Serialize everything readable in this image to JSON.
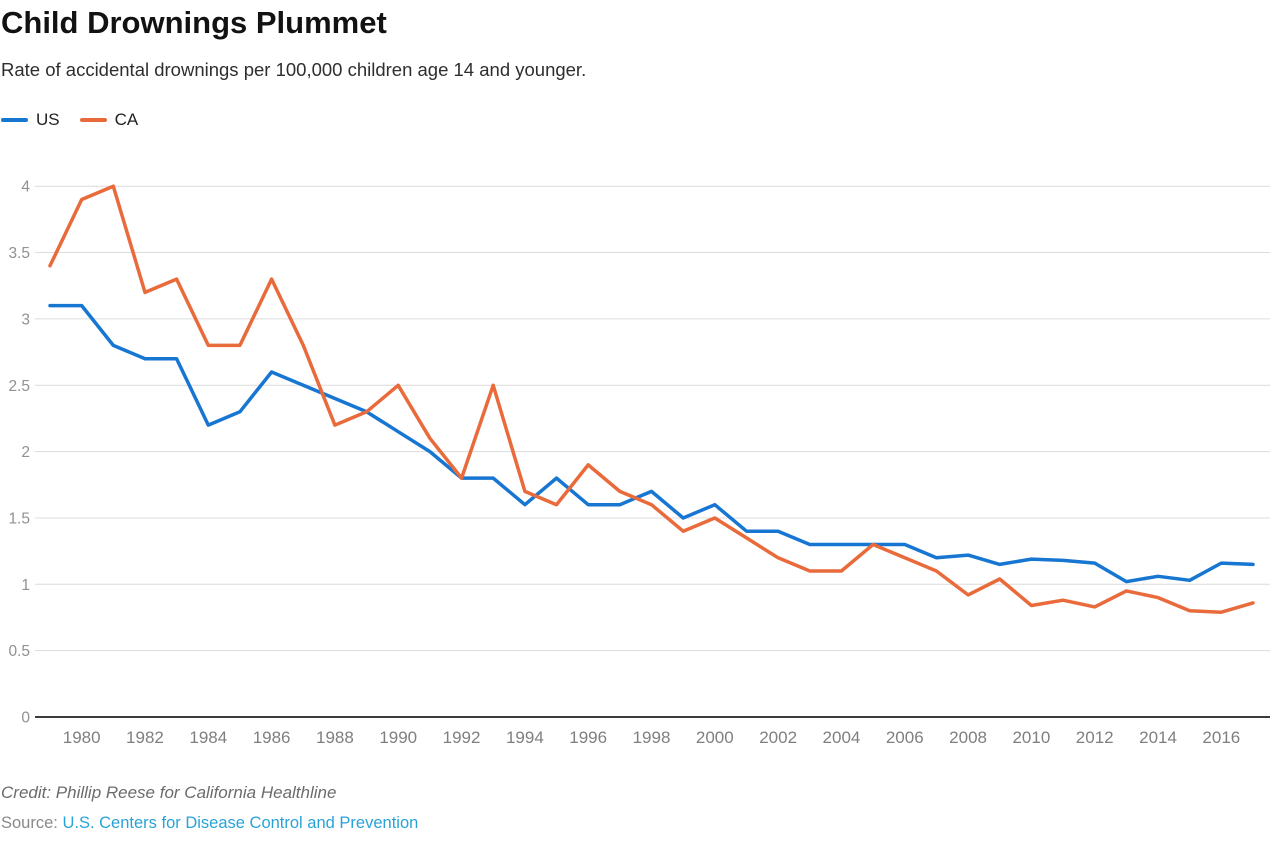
{
  "title": "Child Drownings Plummet",
  "subtitle": "Rate of accidental drownings per 100,000 children age 14 and younger.",
  "legend": [
    {
      "label": "US",
      "color": "#1776d2"
    },
    {
      "label": "CA",
      "color": "#e96a3b"
    }
  ],
  "credit": "Credit: Phillip Reese for California Healthline",
  "source": {
    "label": "Source:",
    "link_text": "U.S. Centers for Disease Control and Prevention"
  },
  "colors": {
    "us_line": "#1776d2",
    "ca_line": "#e96a3b",
    "gridline": "#dcdcdc",
    "zero_axis": "#3c3c3c",
    "y_tick_label": "#919191",
    "x_tick_label": "#7f7f7f",
    "link": "#29a3d7"
  },
  "chart_data": {
    "type": "line",
    "title": "Child Drownings Plummet",
    "subtitle": "Rate of accidental drownings per 100,000 children age 14 and younger.",
    "xlabel": "",
    "ylabel": "",
    "ylim": [
      0,
      4
    ],
    "grid": true,
    "legend_position": "top-left",
    "x": [
      1979,
      1980,
      1981,
      1982,
      1983,
      1984,
      1985,
      1986,
      1987,
      1988,
      1989,
      1990,
      1991,
      1992,
      1993,
      1994,
      1995,
      1996,
      1997,
      1998,
      1999,
      2000,
      2001,
      2002,
      2003,
      2004,
      2005,
      2006,
      2007,
      2008,
      2009,
      2010,
      2011,
      2012,
      2013,
      2014,
      2015,
      2016,
      2017
    ],
    "series": [
      {
        "name": "US",
        "color": "#1776d2",
        "values": [
          3.1,
          3.1,
          2.8,
          2.7,
          2.7,
          2.2,
          2.3,
          2.6,
          2.5,
          2.4,
          2.3,
          2.15,
          2.0,
          1.8,
          1.8,
          1.6,
          1.8,
          1.6,
          1.6,
          1.7,
          1.5,
          1.6,
          1.4,
          1.4,
          1.3,
          1.3,
          1.3,
          1.3,
          1.2,
          1.22,
          1.15,
          1.19,
          1.18,
          1.16,
          1.02,
          1.06,
          1.03,
          1.16,
          1.15
        ]
      },
      {
        "name": "CA",
        "color": "#e96a3b",
        "values": [
          3.4,
          3.9,
          4.0,
          3.2,
          3.3,
          2.8,
          2.8,
          3.3,
          2.8,
          2.2,
          2.3,
          2.5,
          2.1,
          1.8,
          2.5,
          1.7,
          1.6,
          1.9,
          1.7,
          1.6,
          1.4,
          1.5,
          1.35,
          1.2,
          1.1,
          1.1,
          1.3,
          1.2,
          1.1,
          0.92,
          1.04,
          0.84,
          0.88,
          0.83,
          0.95,
          0.9,
          0.8,
          0.79,
          0.86
        ]
      }
    ],
    "yticks": [
      0,
      0.5,
      1,
      1.5,
      2,
      2.5,
      3,
      3.5,
      4
    ],
    "ytick_labels": [
      "0",
      "0.5",
      "1",
      "1.5",
      "2",
      "2.5",
      "3",
      "3.5",
      "4"
    ],
    "xtick_labels": [
      "1980",
      "1982",
      "1984",
      "1986",
      "1988",
      "1990",
      "1992",
      "1994",
      "1996",
      "1998",
      "2000",
      "2002",
      "2004",
      "2006",
      "2008",
      "2010",
      "2012",
      "2014",
      "2016"
    ]
  }
}
